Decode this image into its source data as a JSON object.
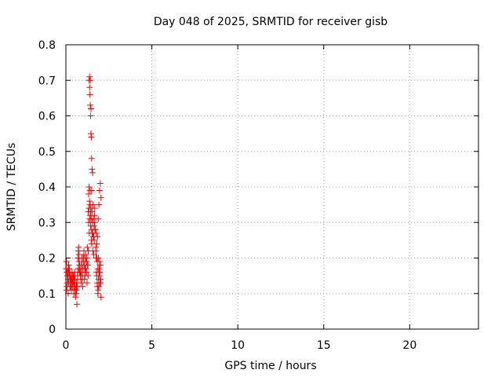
{
  "chart_data": {
    "type": "scatter",
    "title": "Day 048 of 2025, SRMTID for receiver gisb",
    "xlabel": "GPS time / hours",
    "ylabel": "SRMTID / TECUs",
    "xlim": [
      0,
      24
    ],
    "ylim": [
      0,
      0.8
    ],
    "x_ticks": [
      0,
      5,
      10,
      15,
      20
    ],
    "x_tick_labels": [
      "0",
      "5",
      "10",
      "15",
      "20"
    ],
    "y_ticks": [
      0,
      0.1,
      0.2,
      0.3,
      0.4,
      0.5,
      0.6,
      0.7,
      0.8
    ],
    "y_tick_labels": [
      "0",
      "0.1",
      "0.2",
      "0.3",
      "0.4",
      "0.5",
      "0.6",
      "0.7",
      "0.8"
    ],
    "grid": true,
    "marker": "+",
    "marker_color": "#ff0000",
    "series": [
      {
        "name": "gisb",
        "x": [
          0.02,
          0.04,
          0.06,
          0.08,
          0.1,
          0.12,
          0.14,
          0.16,
          0.18,
          0.2,
          0.22,
          0.24,
          0.26,
          0.28,
          0.3,
          0.32,
          0.34,
          0.36,
          0.38,
          0.4,
          0.42,
          0.44,
          0.46,
          0.48,
          0.5,
          0.52,
          0.54,
          0.56,
          0.58,
          0.6,
          0.62,
          0.64,
          0.66,
          0.68,
          0.7,
          0.72,
          0.74,
          0.76,
          0.78,
          0.8,
          0.04,
          0.08,
          0.12,
          0.16,
          0.2,
          0.24,
          0.28,
          0.32,
          0.36,
          0.4,
          0.44,
          0.48,
          0.52,
          0.56,
          0.6,
          0.64,
          0.68,
          0.72,
          0.76,
          0.8,
          0.06,
          0.14,
          0.22,
          0.3,
          0.38,
          0.46,
          0.54,
          0.62,
          0.7,
          0.78,
          0.82,
          0.85,
          0.88,
          0.9,
          0.92,
          0.95,
          0.98,
          1.0,
          1.02,
          1.05,
          1.08,
          1.1,
          1.12,
          1.15,
          1.18,
          1.2,
          1.22,
          1.25,
          1.28,
          1.3,
          0.84,
          0.87,
          0.9,
          0.93,
          0.96,
          0.99,
          1.02,
          1.05,
          1.08,
          1.11,
          1.14,
          1.17,
          1.2,
          1.23,
          1.26,
          1.29,
          1.3,
          1.32,
          1.34,
          1.36,
          1.38,
          1.4,
          1.42,
          1.44,
          1.46,
          1.48,
          1.5,
          1.52,
          1.54,
          1.56,
          1.58,
          1.6,
          1.62,
          1.64,
          1.66,
          1.68,
          1.7,
          1.32,
          1.35,
          1.38,
          1.41,
          1.44,
          1.47,
          1.5,
          1.53,
          1.56,
          1.59,
          1.62,
          1.65,
          1.68,
          1.71,
          1.74,
          1.77,
          1.8,
          1.83,
          1.86,
          1.89,
          1.92,
          1.95,
          1.98,
          2.0,
          2.02,
          1.75,
          1.78,
          1.8,
          1.82,
          1.84,
          1.86,
          1.88,
          1.9,
          1.92,
          1.94,
          1.96,
          1.98,
          2.0,
          2.02,
          2.04,
          1.76,
          1.8,
          1.84,
          1.88,
          1.92,
          1.96,
          2.0,
          2.04,
          1.35,
          1.38,
          1.4,
          1.42,
          1.44,
          1.46,
          1.48,
          1.5,
          1.52,
          1.55,
          1.38,
          1.42,
          1.46,
          1.5
        ],
        "y": [
          0.17,
          0.19,
          0.12,
          0.15,
          0.16,
          0.14,
          0.1,
          0.13,
          0.16,
          0.17,
          0.15,
          0.12,
          0.14,
          0.15,
          0.13,
          0.11,
          0.14,
          0.16,
          0.12,
          0.14,
          0.15,
          0.13,
          0.1,
          0.12,
          0.14,
          0.16,
          0.11,
          0.09,
          0.1,
          0.12,
          0.11,
          0.07,
          0.12,
          0.15,
          0.2,
          0.22,
          0.23,
          0.19,
          0.17,
          0.16,
          0.11,
          0.13,
          0.15,
          0.18,
          0.16,
          0.14,
          0.12,
          0.11,
          0.13,
          0.15,
          0.14,
          0.12,
          0.13,
          0.11,
          0.1,
          0.12,
          0.14,
          0.17,
          0.21,
          0.18,
          0.16,
          0.17,
          0.15,
          0.14,
          0.13,
          0.15,
          0.14,
          0.13,
          0.16,
          0.19,
          0.17,
          0.15,
          0.13,
          0.16,
          0.18,
          0.14,
          0.12,
          0.17,
          0.2,
          0.22,
          0.18,
          0.15,
          0.17,
          0.21,
          0.19,
          0.16,
          0.2,
          0.23,
          0.18,
          0.22,
          0.16,
          0.14,
          0.18,
          0.2,
          0.15,
          0.17,
          0.19,
          0.21,
          0.14,
          0.16,
          0.2,
          0.17,
          0.19,
          0.13,
          0.18,
          0.15,
          0.33,
          0.3,
          0.34,
          0.27,
          0.31,
          0.35,
          0.32,
          0.29,
          0.34,
          0.25,
          0.28,
          0.33,
          0.3,
          0.27,
          0.35,
          0.31,
          0.26,
          0.29,
          0.32,
          0.34,
          0.28,
          0.38,
          0.4,
          0.36,
          0.39,
          0.33,
          0.31,
          0.24,
          0.27,
          0.22,
          0.26,
          0.21,
          0.25,
          0.3,
          0.28,
          0.23,
          0.27,
          0.2,
          0.19,
          0.17,
          0.2,
          0.16,
          0.15,
          0.13,
          0.18,
          0.14,
          0.22,
          0.16,
          0.15,
          0.13,
          0.12,
          0.1,
          0.11,
          0.14,
          0.12,
          0.17,
          0.19,
          0.16,
          0.18,
          0.13,
          0.09,
          0.2,
          0.24,
          0.26,
          0.31,
          0.35,
          0.39,
          0.41,
          0.37,
          0.7,
          0.68,
          0.66,
          0.63,
          0.6,
          0.55,
          0.54,
          0.48,
          0.45,
          0.44,
          0.71,
          0.7,
          0.62,
          0.39
        ]
      }
    ]
  }
}
